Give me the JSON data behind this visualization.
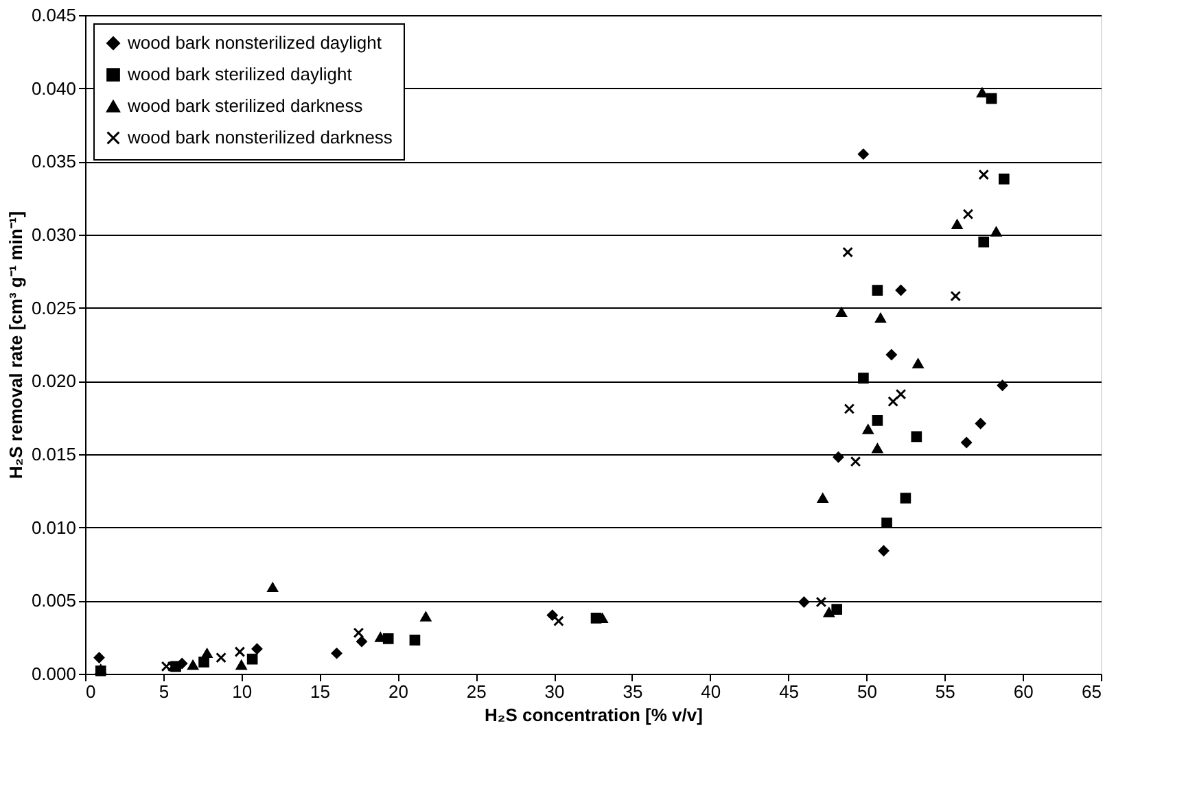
{
  "chart_data": {
    "type": "scatter",
    "xlabel": "H₂S concentration [% v/v]",
    "ylabel": "H₂S removal rate [cm³ g⁻¹ min⁻¹]",
    "xlim": [
      0,
      65
    ],
    "xticks": [
      0,
      5,
      10,
      15,
      20,
      25,
      30,
      35,
      40,
      45,
      50,
      55,
      60,
      65
    ],
    "ylim": [
      0,
      0.045
    ],
    "yticks": [
      {
        "value": 0,
        "label": "0.000"
      },
      0.005,
      {
        "value": 0.01,
        "label": "0.010"
      },
      0.015,
      {
        "value": 0.02,
        "label": "0.020"
      },
      0.025,
      {
        "value": 0.03,
        "label": "0.030"
      },
      0.035,
      {
        "value": 0.04,
        "label": "0.040"
      },
      0.045
    ],
    "grid": "y",
    "legend": "top left",
    "series": [
      {
        "name": "wood bark nonsterilized daylight",
        "color": "#000000",
        "marker": "diamond",
        "x": [
          0.9,
          6.2,
          11.0,
          16.1,
          17.7,
          29.9,
          46.0,
          48.2,
          49.8,
          51.1,
          51.6,
          52.2,
          56.4,
          57.3,
          58.7
        ],
        "values": [
          0.0011,
          0.0007,
          0.0017,
          0.0014,
          0.0022,
          0.004,
          0.0049,
          0.0148,
          0.0355,
          0.0084,
          0.0218,
          0.0262,
          0.0158,
          0.0171,
          0.0197
        ]
      },
      {
        "name": "wood bark sterilized daylight",
        "color": "#000000",
        "marker": "square",
        "x": [
          1.0,
          5.8,
          7.6,
          10.7,
          19.4,
          21.1,
          32.7,
          48.1,
          49.8,
          50.7,
          50.7,
          51.3,
          52.5,
          53.2,
          57.5,
          58.0,
          58.8
        ],
        "values": [
          0.0002,
          0.0005,
          0.0008,
          0.001,
          0.0024,
          0.0023,
          0.0038,
          0.0044,
          0.0202,
          0.0262,
          0.0173,
          0.0103,
          0.012,
          0.0162,
          0.0295,
          0.0393,
          0.0338
        ]
      },
      {
        "name": "wood bark sterilized darkness",
        "color": "#000000",
        "marker": "triangle",
        "x": [
          1.0,
          6.9,
          7.8,
          10.0,
          12.0,
          18.9,
          21.8,
          33.1,
          47.2,
          47.6,
          48.4,
          50.1,
          50.7,
          50.9,
          53.3,
          55.8,
          57.4,
          58.3
        ],
        "values": [
          0.0003,
          0.0006,
          0.0014,
          0.0006,
          0.0059,
          0.0025,
          0.0039,
          0.0038,
          0.012,
          0.0042,
          0.0247,
          0.0167,
          0.0154,
          0.0243,
          0.0212,
          0.0307,
          0.0397,
          0.0302
        ]
      },
      {
        "name": "wood bark nonsterilized darkness",
        "color": "#000000",
        "marker": "cross",
        "x": [
          5.2,
          5.6,
          8.7,
          9.9,
          17.5,
          30.3,
          47.1,
          48.8,
          48.9,
          49.3,
          51.7,
          52.2,
          55.7,
          56.5,
          57.5
        ],
        "values": [
          0.0005,
          0.0005,
          0.0011,
          0.0015,
          0.0028,
          0.0036,
          0.0049,
          0.0288,
          0.0181,
          0.0145,
          0.0186,
          0.0191,
          0.0258,
          0.0314,
          0.0341
        ]
      }
    ]
  }
}
